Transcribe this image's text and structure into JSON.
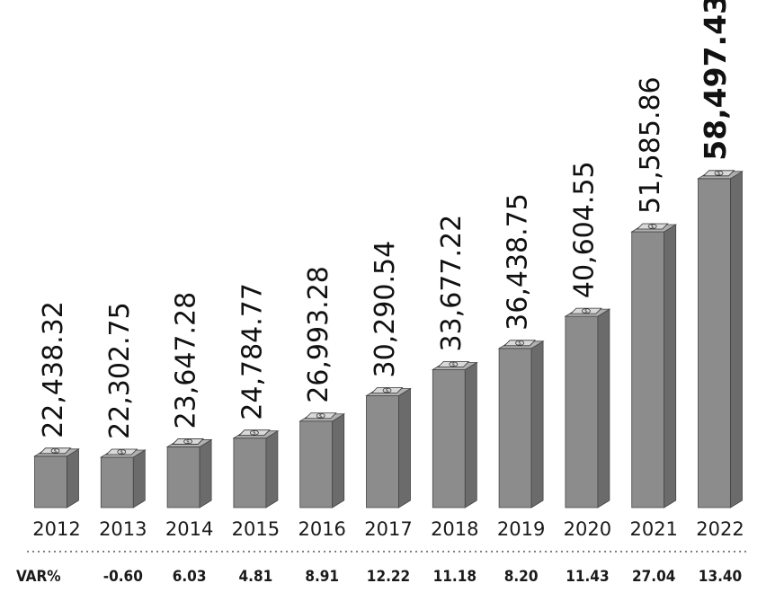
{
  "chart_data": {
    "type": "bar",
    "categories": [
      "2012",
      "2013",
      "2014",
      "2015",
      "2016",
      "2017",
      "2018",
      "2019",
      "2020",
      "2021",
      "2022"
    ],
    "values": [
      22438.32,
      22302.75,
      23647.28,
      24784.77,
      26993.28,
      30290.54,
      33677.22,
      36438.75,
      40604.55,
      51585.86,
      58497.43
    ],
    "value_labels": [
      "22,438.32",
      "22,302.75",
      "23,647.28",
      "24,784.77",
      "26,993.28",
      "30,290.54",
      "33,677.22",
      "36,438.75",
      "40,604.55",
      "51,585.86",
      "58,497.43"
    ],
    "var_label": "VAR%",
    "var_values": [
      "-0.60",
      "6.03",
      "4.81",
      "8.91",
      "12.22",
      "11.18",
      "8.20",
      "11.43",
      "27.04",
      "13.40"
    ],
    "highlight_index": 10,
    "colors": {
      "bar_front": "#8c8c8c",
      "bar_side": "#6b6b6b",
      "bar_top": "#b0b0b0",
      "bill": "#d9d9d9",
      "text": "#111111"
    },
    "icon": "dollar-bill-stack-icon",
    "grid": false
  }
}
